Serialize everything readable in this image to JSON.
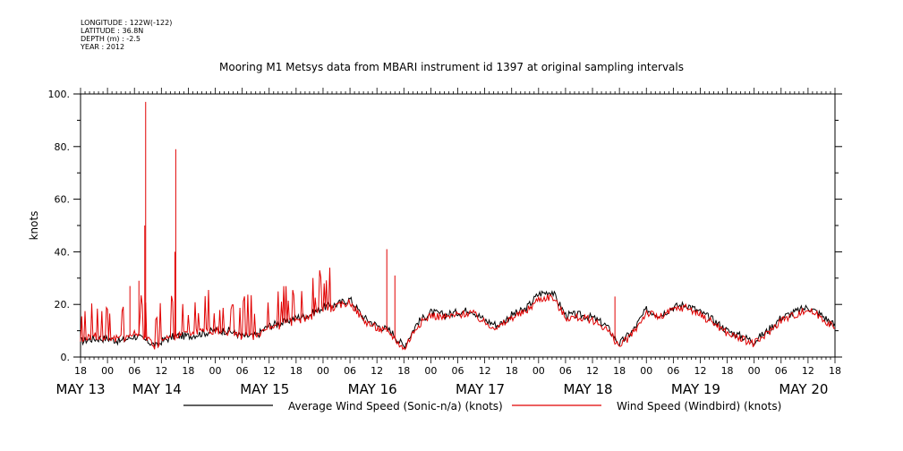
{
  "header": {
    "longitude": "LONGITUDE : 122W(-122)",
    "latitude": "LATITUDE : 36.8N",
    "depth": "DEPTH (m) : -2.5",
    "year": "YEAR : 2012"
  },
  "chart_data": {
    "type": "line",
    "title": "Mooring M1 Metsys data from MBARI instrument id 1397 at original sampling intervals",
    "ylabel": "knots",
    "ylim": [
      0,
      100
    ],
    "yticks": [
      0,
      20,
      40,
      60,
      80,
      100
    ],
    "ytick_labels": [
      "0.",
      "20.",
      "40.",
      "60.",
      "80.",
      "100."
    ],
    "x_unit": "hours since 2012-05-12 18:00",
    "xlim": [
      0,
      168
    ],
    "xticks": [
      0,
      6,
      12,
      18,
      24,
      30,
      36,
      42,
      48,
      54,
      60,
      66,
      72,
      78,
      84,
      90,
      96,
      102,
      108,
      114,
      120,
      126,
      132,
      138,
      144,
      150,
      156,
      162,
      168
    ],
    "xtick_labels": [
      "18",
      "00",
      "06",
      "12",
      "18",
      "00",
      "06",
      "12",
      "18",
      "00",
      "06",
      "12",
      "18",
      "00",
      "06",
      "12",
      "18",
      "00",
      "06",
      "12",
      "18",
      "00",
      "06",
      "12",
      "18",
      "00",
      "06",
      "12",
      "18"
    ],
    "day_labels": [
      {
        "label": "MAY 13",
        "x": 0
      },
      {
        "label": "MAY 14",
        "x": 17
      },
      {
        "label": "MAY 15",
        "x": 41
      },
      {
        "label": "MAY 16",
        "x": 65
      },
      {
        "label": "MAY 17",
        "x": 89
      },
      {
        "label": "MAY 18",
        "x": 113
      },
      {
        "label": "MAY 19",
        "x": 137
      },
      {
        "label": "MAY 20",
        "x": 161
      }
    ],
    "grid": false,
    "legend_position": "bottom",
    "series": [
      {
        "name": "Average Wind Speed (Sonic-n/a) (knots)",
        "color": "#000000",
        "x": [
          0,
          3,
          6,
          9,
          12,
          15,
          17,
          18,
          21,
          24,
          27,
          30,
          33,
          36,
          39,
          42,
          45,
          48,
          51,
          54,
          57,
          60,
          63,
          66,
          69,
          72,
          75,
          78,
          81,
          84,
          87,
          90,
          93,
          96,
          99,
          102,
          105,
          108,
          111,
          114,
          117,
          120,
          123,
          126,
          129,
          132,
          135,
          138,
          141,
          144,
          147,
          150,
          153,
          156,
          159,
          162,
          165,
          168
        ],
        "y": [
          6,
          7,
          7,
          6,
          8,
          6,
          4,
          6,
          8,
          8,
          9,
          10,
          10,
          8,
          8,
          12,
          13,
          15,
          16,
          19,
          20,
          22,
          15,
          12,
          10,
          4,
          13,
          17,
          16,
          17,
          18,
          14,
          12,
          16,
          18,
          24,
          25,
          16,
          16,
          15,
          12,
          5,
          10,
          18,
          16,
          19,
          20,
          17,
          14,
          10,
          8,
          6,
          10,
          15,
          17,
          19,
          16,
          12
        ]
      },
      {
        "name": "Wind Speed (Windbird) (knots)",
        "color": "#e00000",
        "x": [
          0,
          3,
          6,
          9,
          12,
          15,
          17,
          18,
          21,
          24,
          27,
          30,
          33,
          36,
          39,
          42,
          45,
          48,
          51,
          54,
          57,
          60,
          63,
          66,
          69,
          72,
          75,
          78,
          81,
          84,
          87,
          90,
          93,
          96,
          99,
          102,
          105,
          108,
          111,
          114,
          117,
          120,
          123,
          126,
          129,
          132,
          135,
          138,
          141,
          144,
          147,
          150,
          153,
          156,
          159,
          162,
          165,
          168
        ],
        "y": [
          7,
          8,
          7,
          7,
          9,
          7,
          3,
          7,
          8,
          9,
          10,
          10,
          9,
          8,
          8,
          11,
          12,
          14,
          15,
          18,
          19,
          21,
          14,
          11,
          9,
          3,
          12,
          16,
          15,
          16,
          17,
          13,
          11,
          15,
          17,
          22,
          23,
          15,
          15,
          14,
          11,
          4,
          9,
          17,
          15,
          18,
          19,
          16,
          13,
          9,
          7,
          5,
          9,
          14,
          16,
          18,
          15,
          11
        ]
      }
    ],
    "spikes": [
      {
        "x": 14.5,
        "y": 97
      },
      {
        "x": 14.3,
        "y": 50
      },
      {
        "x": 21.2,
        "y": 79
      },
      {
        "x": 21.0,
        "y": 40
      },
      {
        "x": 68.2,
        "y": 41
      },
      {
        "x": 70.0,
        "y": 31
      },
      {
        "x": 119.0,
        "y": 23
      },
      {
        "x": 11.0,
        "y": 27
      },
      {
        "x": 13.0,
        "y": 29
      }
    ]
  }
}
